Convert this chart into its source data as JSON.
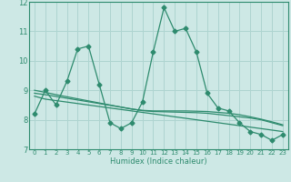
{
  "xlabel": "Humidex (Indice chaleur)",
  "x_values": [
    0,
    1,
    2,
    3,
    4,
    5,
    6,
    7,
    8,
    9,
    10,
    11,
    12,
    13,
    14,
    15,
    16,
    17,
    18,
    19,
    20,
    21,
    22,
    23
  ],
  "series1": [
    8.2,
    9.0,
    8.5,
    9.3,
    10.4,
    10.5,
    9.2,
    7.9,
    7.7,
    7.9,
    8.6,
    10.3,
    11.8,
    11.0,
    11.1,
    10.3,
    8.9,
    8.4,
    8.3,
    7.9,
    7.6,
    7.5,
    7.3,
    7.5
  ],
  "series2": [
    8.8,
    8.7,
    8.65,
    8.6,
    8.55,
    8.5,
    8.45,
    8.4,
    8.35,
    8.3,
    8.25,
    8.2,
    8.15,
    8.1,
    8.05,
    8.0,
    7.95,
    7.9,
    7.85,
    7.8,
    7.75,
    7.7,
    7.65,
    7.6
  ],
  "series3": [
    8.9,
    8.85,
    8.79,
    8.73,
    8.67,
    8.61,
    8.55,
    8.49,
    8.43,
    8.37,
    8.31,
    8.28,
    8.27,
    8.26,
    8.25,
    8.24,
    8.22,
    8.18,
    8.14,
    8.1,
    8.06,
    8.0,
    7.9,
    7.8
  ],
  "series4": [
    9.0,
    8.93,
    8.85,
    8.78,
    8.71,
    8.64,
    8.57,
    8.5,
    8.43,
    8.36,
    8.32,
    8.3,
    8.3,
    8.3,
    8.3,
    8.29,
    8.28,
    8.25,
    8.22,
    8.17,
    8.1,
    8.02,
    7.93,
    7.83
  ],
  "line_color": "#2e8b6e",
  "bg_color": "#cde8e5",
  "grid_color": "#aed4d0",
  "ylim": [
    7,
    12
  ],
  "xlim": [
    -0.5,
    23.5
  ],
  "yticks": [
    7,
    8,
    9,
    10,
    11,
    12
  ],
  "xticks": [
    0,
    1,
    2,
    3,
    4,
    5,
    6,
    7,
    8,
    9,
    10,
    11,
    12,
    13,
    14,
    15,
    16,
    17,
    18,
    19,
    20,
    21,
    22,
    23
  ]
}
